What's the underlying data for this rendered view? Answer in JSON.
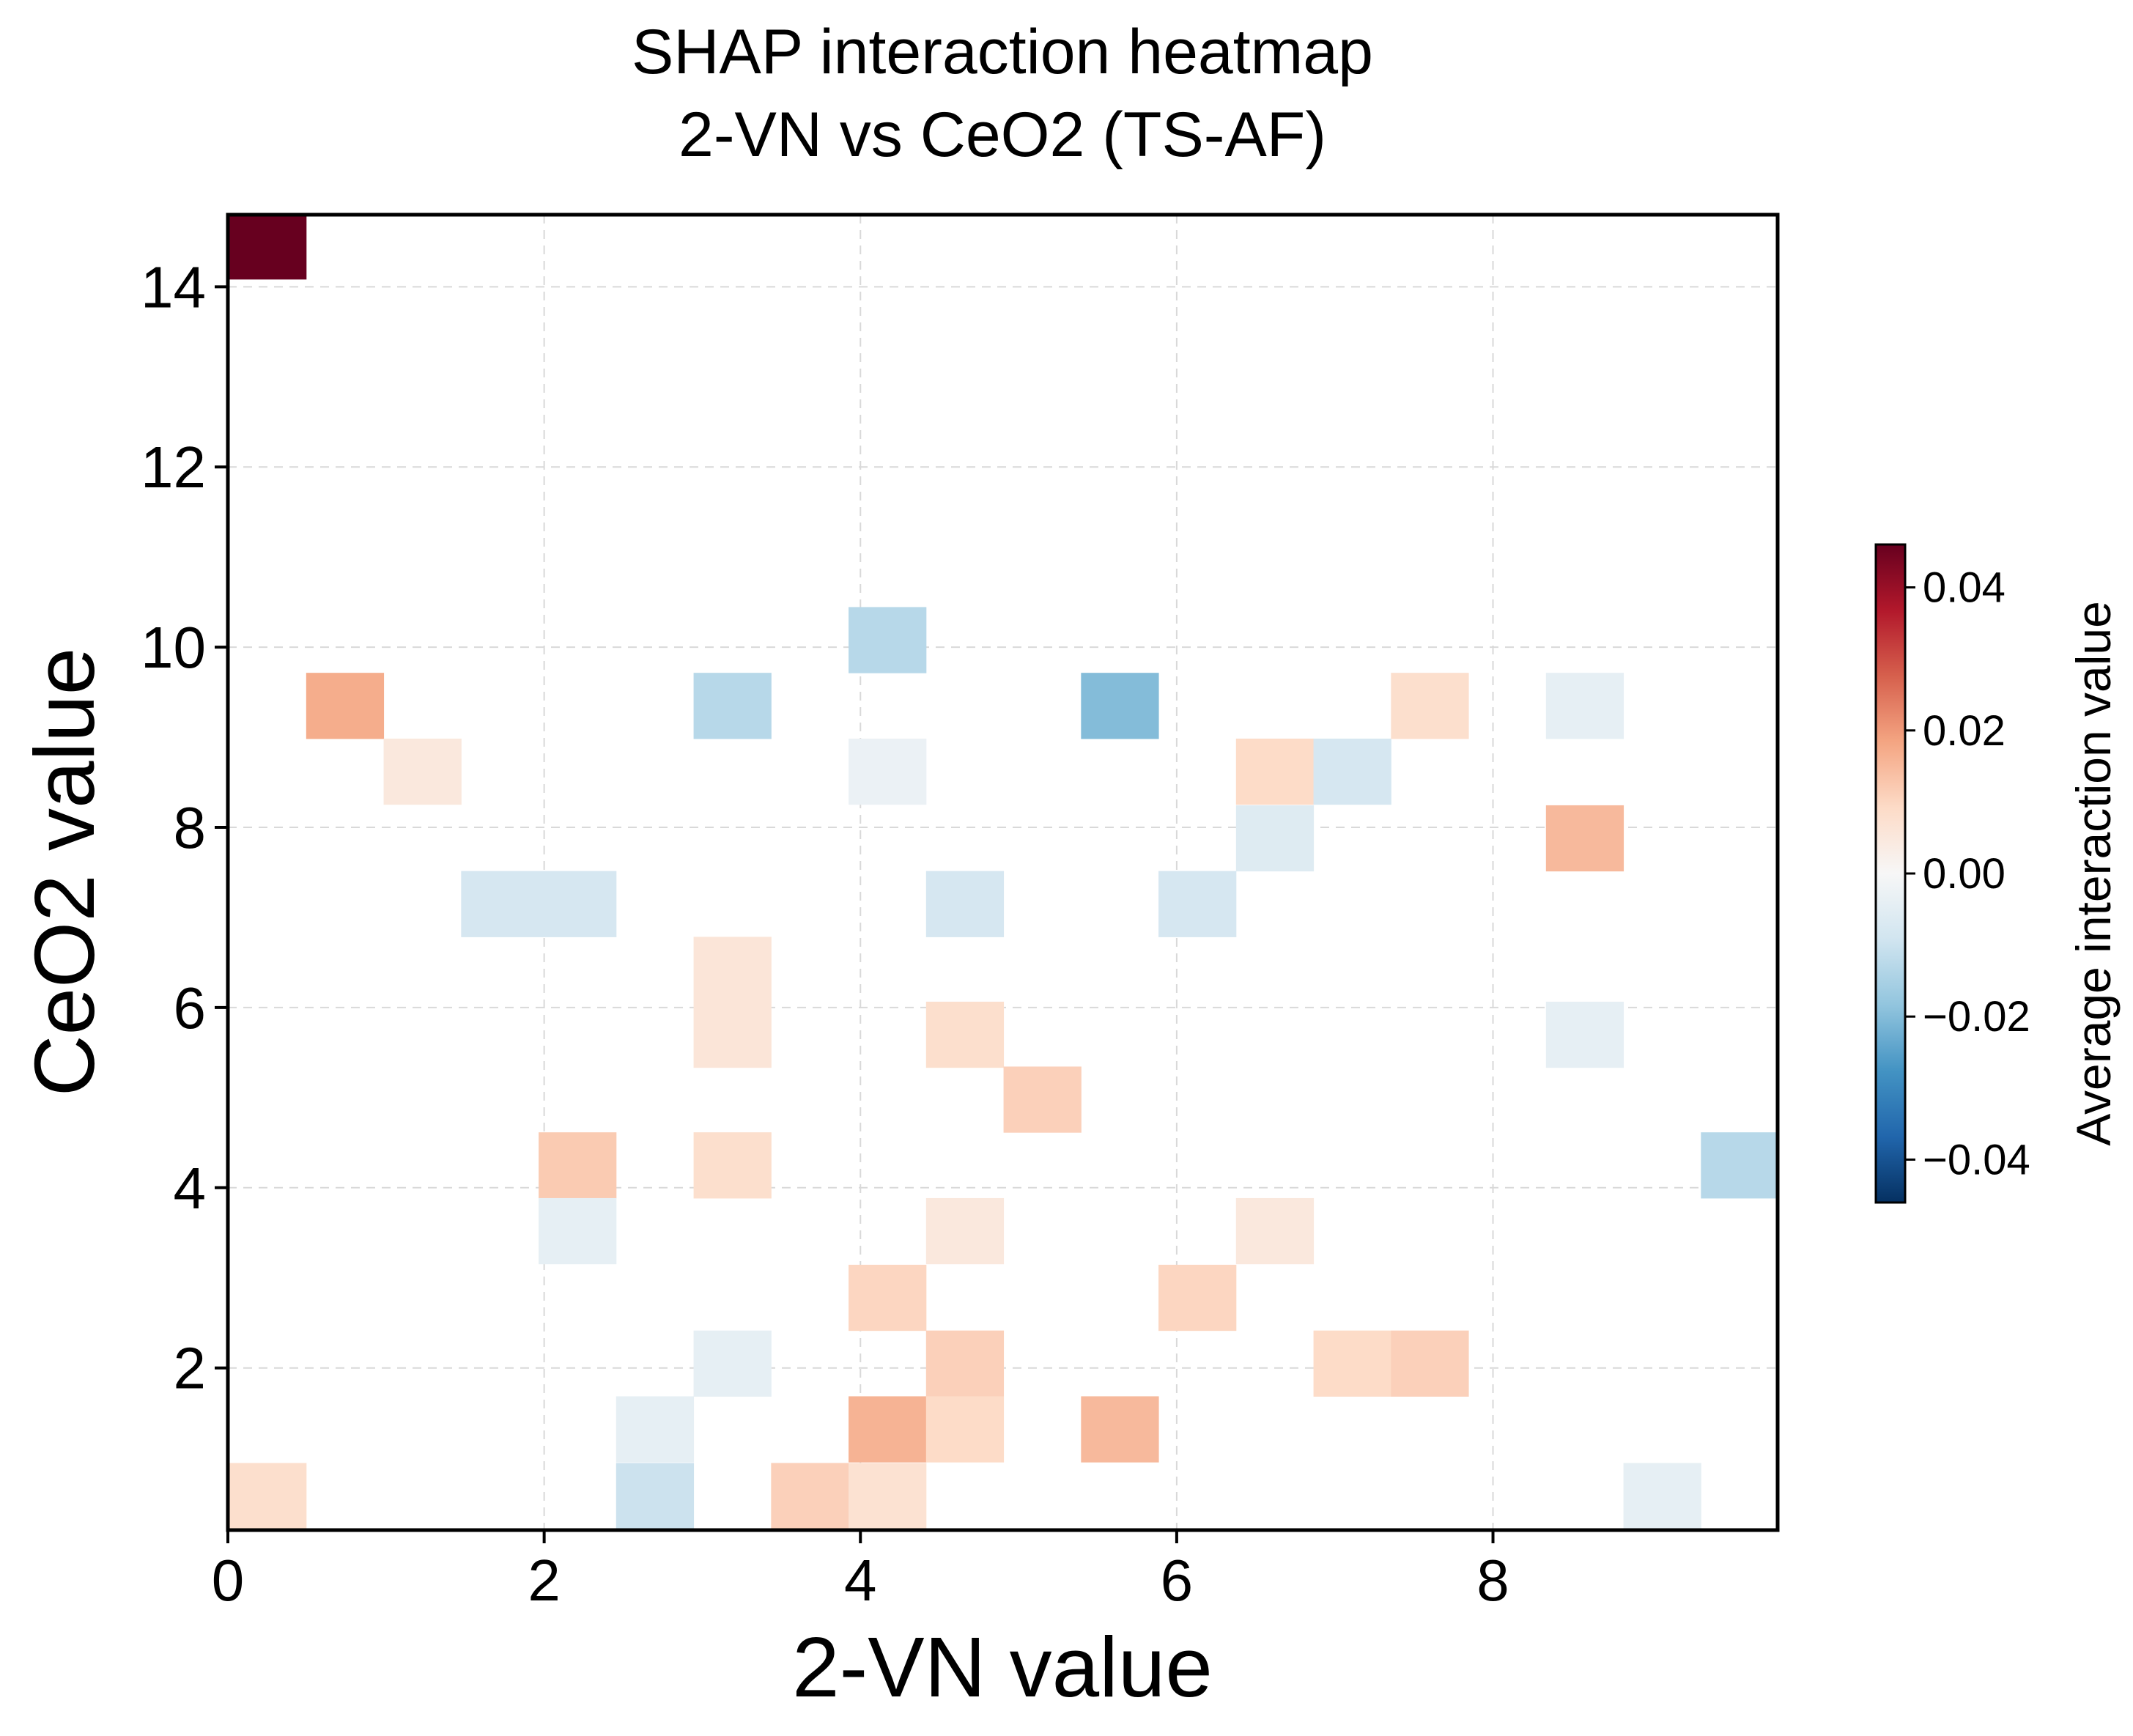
{
  "chart_data": {
    "type": "heatmap",
    "title_lines": [
      "SHAP interaction heatmap",
      "2-VN vs CeO2 (TS-AF)"
    ],
    "xlabel": "2-VN value",
    "ylabel": "CeO2 value",
    "xlim": [
      0,
      9.8
    ],
    "ylim": [
      0.2,
      14.8
    ],
    "xticks": [
      0,
      2,
      4,
      6,
      8
    ],
    "xtick_labels": [
      "0",
      "2",
      "4",
      "6",
      "8"
    ],
    "yticks": [
      2,
      4,
      6,
      8,
      10,
      12,
      14
    ],
    "ytick_labels": [
      "2",
      "4",
      "6",
      "8",
      "10",
      "12",
      "14"
    ],
    "grid": true,
    "bin_width": 0.49,
    "bin_height": 0.73,
    "colorscale": {
      "name": "RdBu_r",
      "vmin": -0.046,
      "vmax": 0.046,
      "ticks": [
        0.04,
        0.02,
        0.0,
        -0.02,
        -0.04
      ],
      "tick_labels": [
        "0.04",
        "0.02",
        "0.00",
        "−0.02",
        "−0.04"
      ],
      "label": "Average interaction value",
      "colors": [
        "#053061",
        "#2166ac",
        "#4393c3",
        "#92c5de",
        "#d1e5f0",
        "#f7f7f7",
        "#fddbc7",
        "#f4a582",
        "#d6604d",
        "#b2182b",
        "#67001f"
      ]
    },
    "cells": [
      {
        "x": 0.25,
        "y": 14.45,
        "value": 0.046
      },
      {
        "x": 0.74,
        "y": 9.35,
        "value": 0.017
      },
      {
        "x": 1.23,
        "y": 8.62,
        "value": 0.005
      },
      {
        "x": 1.72,
        "y": 7.15,
        "value": -0.008
      },
      {
        "x": 2.21,
        "y": 7.15,
        "value": -0.008
      },
      {
        "x": 2.21,
        "y": 4.25,
        "value": 0.012
      },
      {
        "x": 2.21,
        "y": 3.52,
        "value": -0.004
      },
      {
        "x": 2.7,
        "y": 1.32,
        "value": -0.004
      },
      {
        "x": 2.7,
        "y": 0.58,
        "value": -0.01
      },
      {
        "x": 3.19,
        "y": 9.35,
        "value": -0.013
      },
      {
        "x": 3.19,
        "y": 6.42,
        "value": 0.006
      },
      {
        "x": 3.19,
        "y": 5.7,
        "value": 0.006
      },
      {
        "x": 3.19,
        "y": 4.25,
        "value": 0.008
      },
      {
        "x": 3.19,
        "y": 2.05,
        "value": -0.004
      },
      {
        "x": 3.68,
        "y": 0.58,
        "value": 0.011
      },
      {
        "x": 4.17,
        "y": 10.08,
        "value": -0.013
      },
      {
        "x": 4.17,
        "y": 8.62,
        "value": -0.003
      },
      {
        "x": 4.17,
        "y": 2.78,
        "value": 0.01
      },
      {
        "x": 4.17,
        "y": 1.32,
        "value": 0.016
      },
      {
        "x": 4.17,
        "y": 0.58,
        "value": 0.007
      },
      {
        "x": 4.66,
        "y": 7.15,
        "value": -0.008
      },
      {
        "x": 4.66,
        "y": 5.7,
        "value": 0.008
      },
      {
        "x": 4.66,
        "y": 3.52,
        "value": 0.005
      },
      {
        "x": 4.66,
        "y": 2.05,
        "value": 0.011
      },
      {
        "x": 4.66,
        "y": 1.32,
        "value": 0.009
      },
      {
        "x": 5.15,
        "y": 4.98,
        "value": 0.011
      },
      {
        "x": 5.64,
        "y": 9.35,
        "value": -0.02
      },
      {
        "x": 5.64,
        "y": 1.32,
        "value": 0.015
      },
      {
        "x": 6.13,
        "y": 7.15,
        "value": -0.008
      },
      {
        "x": 6.13,
        "y": 2.78,
        "value": 0.01
      },
      {
        "x": 6.62,
        "y": 8.62,
        "value": 0.009
      },
      {
        "x": 6.62,
        "y": 7.88,
        "value": -0.006
      },
      {
        "x": 6.62,
        "y": 3.52,
        "value": 0.005
      },
      {
        "x": 7.11,
        "y": 8.62,
        "value": -0.008
      },
      {
        "x": 7.11,
        "y": 2.05,
        "value": 0.009
      },
      {
        "x": 7.6,
        "y": 9.35,
        "value": 0.008
      },
      {
        "x": 7.6,
        "y": 2.05,
        "value": 0.011
      },
      {
        "x": 8.58,
        "y": 9.35,
        "value": -0.004
      },
      {
        "x": 8.58,
        "y": 7.88,
        "value": 0.015
      },
      {
        "x": 8.58,
        "y": 5.7,
        "value": -0.004
      },
      {
        "x": 9.07,
        "y": 0.58,
        "value": -0.004
      },
      {
        "x": 9.56,
        "y": 4.25,
        "value": -0.013
      },
      {
        "x": 0.25,
        "y": 0.58,
        "value": 0.008
      }
    ]
  }
}
